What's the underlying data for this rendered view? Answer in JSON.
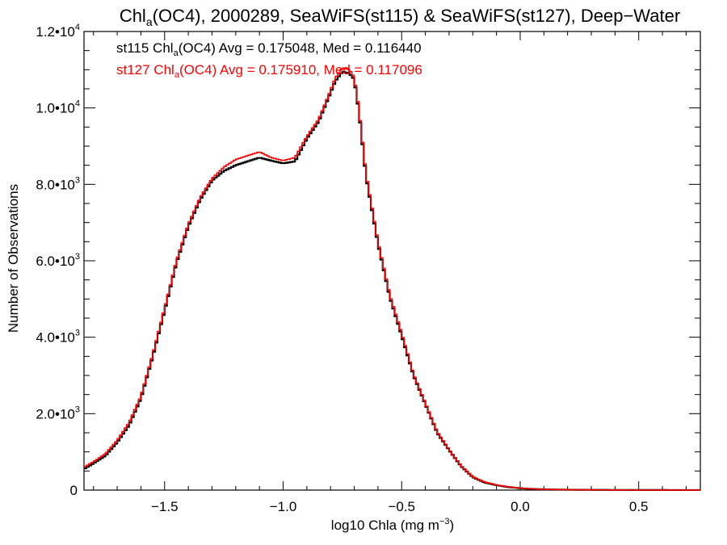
{
  "chart_data": {
    "type": "line",
    "title": {
      "main": "Chl",
      "sub": "a",
      "rest": "(OC4), 2000289, SeaWiFS(st115) & SeaWiFS(st127), Deep−Water"
    },
    "xlabel": {
      "main": "log10 Chla (mg m",
      "sup": "−3",
      "close": ")"
    },
    "ylabel": "Number of Observations",
    "xlim": [
      -1.84,
      0.76
    ],
    "ylim": [
      0,
      12000
    ],
    "x_ticks": [
      -1.5,
      -1.0,
      -0.5,
      0.0,
      0.5
    ],
    "x_tick_labels": [
      "−1.5",
      "−1.0",
      "−0.5",
      "0.0",
      "0.5"
    ],
    "y_ticks": [
      0,
      2000,
      4000,
      6000,
      8000,
      10000,
      12000
    ],
    "y_tick_labels": [
      {
        "zero": "0"
      },
      {
        "mant": "2.0•10",
        "exp": "3"
      },
      {
        "mant": "4.0•10",
        "exp": "3"
      },
      {
        "mant": "6.0•10",
        "exp": "3"
      },
      {
        "mant": "8.0•10",
        "exp": "3"
      },
      {
        "mant": "1.0•10",
        "exp": "4"
      },
      {
        "mant": "1.2•10",
        "exp": "4"
      }
    ],
    "annotations": [
      {
        "pre": "st115 Chl",
        "sub": "a",
        "post": "(OC4) Avg = 0.175048, Med = 0.116440",
        "color": "#000000"
      },
      {
        "pre": "st127 Chl",
        "sub": "a",
        "post": "(OC4) Avg = 0.175910, Med = 0.117096",
        "color": "#ff0000"
      }
    ],
    "bin_width": 0.01,
    "series": [
      {
        "color": "#000000",
        "x": [
          -1.84,
          -1.8,
          -1.75,
          -1.7,
          -1.65,
          -1.6,
          -1.55,
          -1.5,
          -1.45,
          -1.4,
          -1.35,
          -1.3,
          -1.25,
          -1.2,
          -1.15,
          -1.1,
          -1.05,
          -1.0,
          -0.95,
          -0.9,
          -0.85,
          -0.8,
          -0.78,
          -0.75,
          -0.72,
          -0.7,
          -0.68,
          -0.65,
          -0.6,
          -0.55,
          -0.5,
          -0.45,
          -0.4,
          -0.35,
          -0.3,
          -0.25,
          -0.2,
          -0.15,
          -0.1,
          -0.05,
          0.0,
          0.05,
          0.1,
          0.15,
          0.2,
          0.25,
          0.3,
          0.4,
          0.5,
          0.6,
          0.7,
          0.76
        ],
        "y": [
          550,
          700,
          900,
          1250,
          1700,
          2400,
          3500,
          4700,
          5950,
          6900,
          7600,
          8100,
          8350,
          8500,
          8600,
          8700,
          8620,
          8550,
          8600,
          9200,
          9650,
          10400,
          10700,
          10950,
          10900,
          10750,
          9900,
          8200,
          6450,
          5050,
          4050,
          3000,
          2250,
          1500,
          1050,
          630,
          340,
          200,
          130,
          80,
          50,
          30,
          20,
          15,
          10,
          8,
          6,
          4,
          3,
          2,
          1,
          1
        ]
      },
      {
        "color": "#ff0000",
        "x": [
          -1.84,
          -1.8,
          -1.75,
          -1.7,
          -1.65,
          -1.6,
          -1.55,
          -1.5,
          -1.45,
          -1.4,
          -1.35,
          -1.3,
          -1.25,
          -1.2,
          -1.15,
          -1.1,
          -1.05,
          -1.0,
          -0.95,
          -0.9,
          -0.85,
          -0.8,
          -0.78,
          -0.75,
          -0.72,
          -0.7,
          -0.68,
          -0.65,
          -0.6,
          -0.55,
          -0.5,
          -0.45,
          -0.4,
          -0.35,
          -0.3,
          -0.25,
          -0.2,
          -0.15,
          -0.1,
          -0.05,
          0.0,
          0.05,
          0.1,
          0.15,
          0.2,
          0.25,
          0.3,
          0.4,
          0.5,
          0.6,
          0.7,
          0.76
        ],
        "y": [
          600,
          740,
          950,
          1300,
          1760,
          2450,
          3550,
          4750,
          6000,
          6950,
          7650,
          8150,
          8450,
          8650,
          8750,
          8850,
          8700,
          8620,
          8700,
          9250,
          9700,
          10450,
          10780,
          11050,
          11000,
          10800,
          9950,
          8250,
          6500,
          5100,
          4100,
          3030,
          2270,
          1520,
          1060,
          640,
          350,
          210,
          135,
          85,
          52,
          31,
          21,
          16,
          11,
          9,
          6,
          4,
          3,
          2,
          1,
          1
        ]
      }
    ]
  }
}
